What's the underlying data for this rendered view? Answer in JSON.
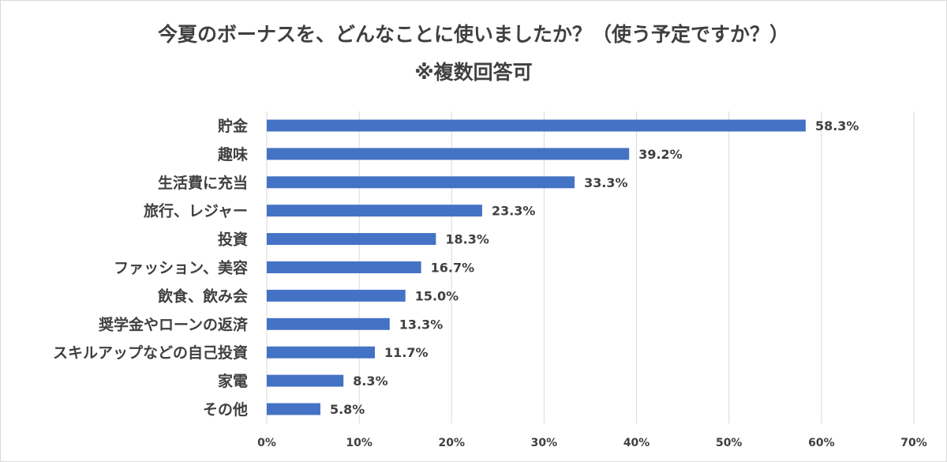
{
  "chart_data": {
    "type": "bar",
    "orientation": "horizontal",
    "title": "今夏のボーナスを、どんなことに使いましたか？（使う予定ですか？）",
    "subtitle": "※複数回答可",
    "categories": [
      "貯金",
      "趣味",
      "生活費に充当",
      "旅行、レジャー",
      "投資",
      "ファッション、美容",
      "飲食、飲み会",
      "奨学金やローンの返済",
      "スキルアップなどの自己投資",
      "家電",
      "その他"
    ],
    "values": [
      58.3,
      39.2,
      33.3,
      23.3,
      18.3,
      16.7,
      15.0,
      13.3,
      11.7,
      8.3,
      5.8
    ],
    "data_labels": [
      "58.3%",
      "39.2%",
      "33.3%",
      "23.3%",
      "18.3%",
      "16.7%",
      "15.0%",
      "13.3%",
      "11.7%",
      "8.3%",
      "5.8%"
    ],
    "xlim": [
      0,
      70
    ],
    "x_ticks": [
      "0%",
      "10%",
      "20%",
      "30%",
      "40%",
      "50%",
      "60%",
      "70%"
    ],
    "xlabel": "",
    "ylabel": "",
    "grid": "vertical",
    "legend": "none",
    "colors": {
      "bar": "#4472C4",
      "text": "#404040",
      "grid": "#d9d9d9"
    }
  }
}
